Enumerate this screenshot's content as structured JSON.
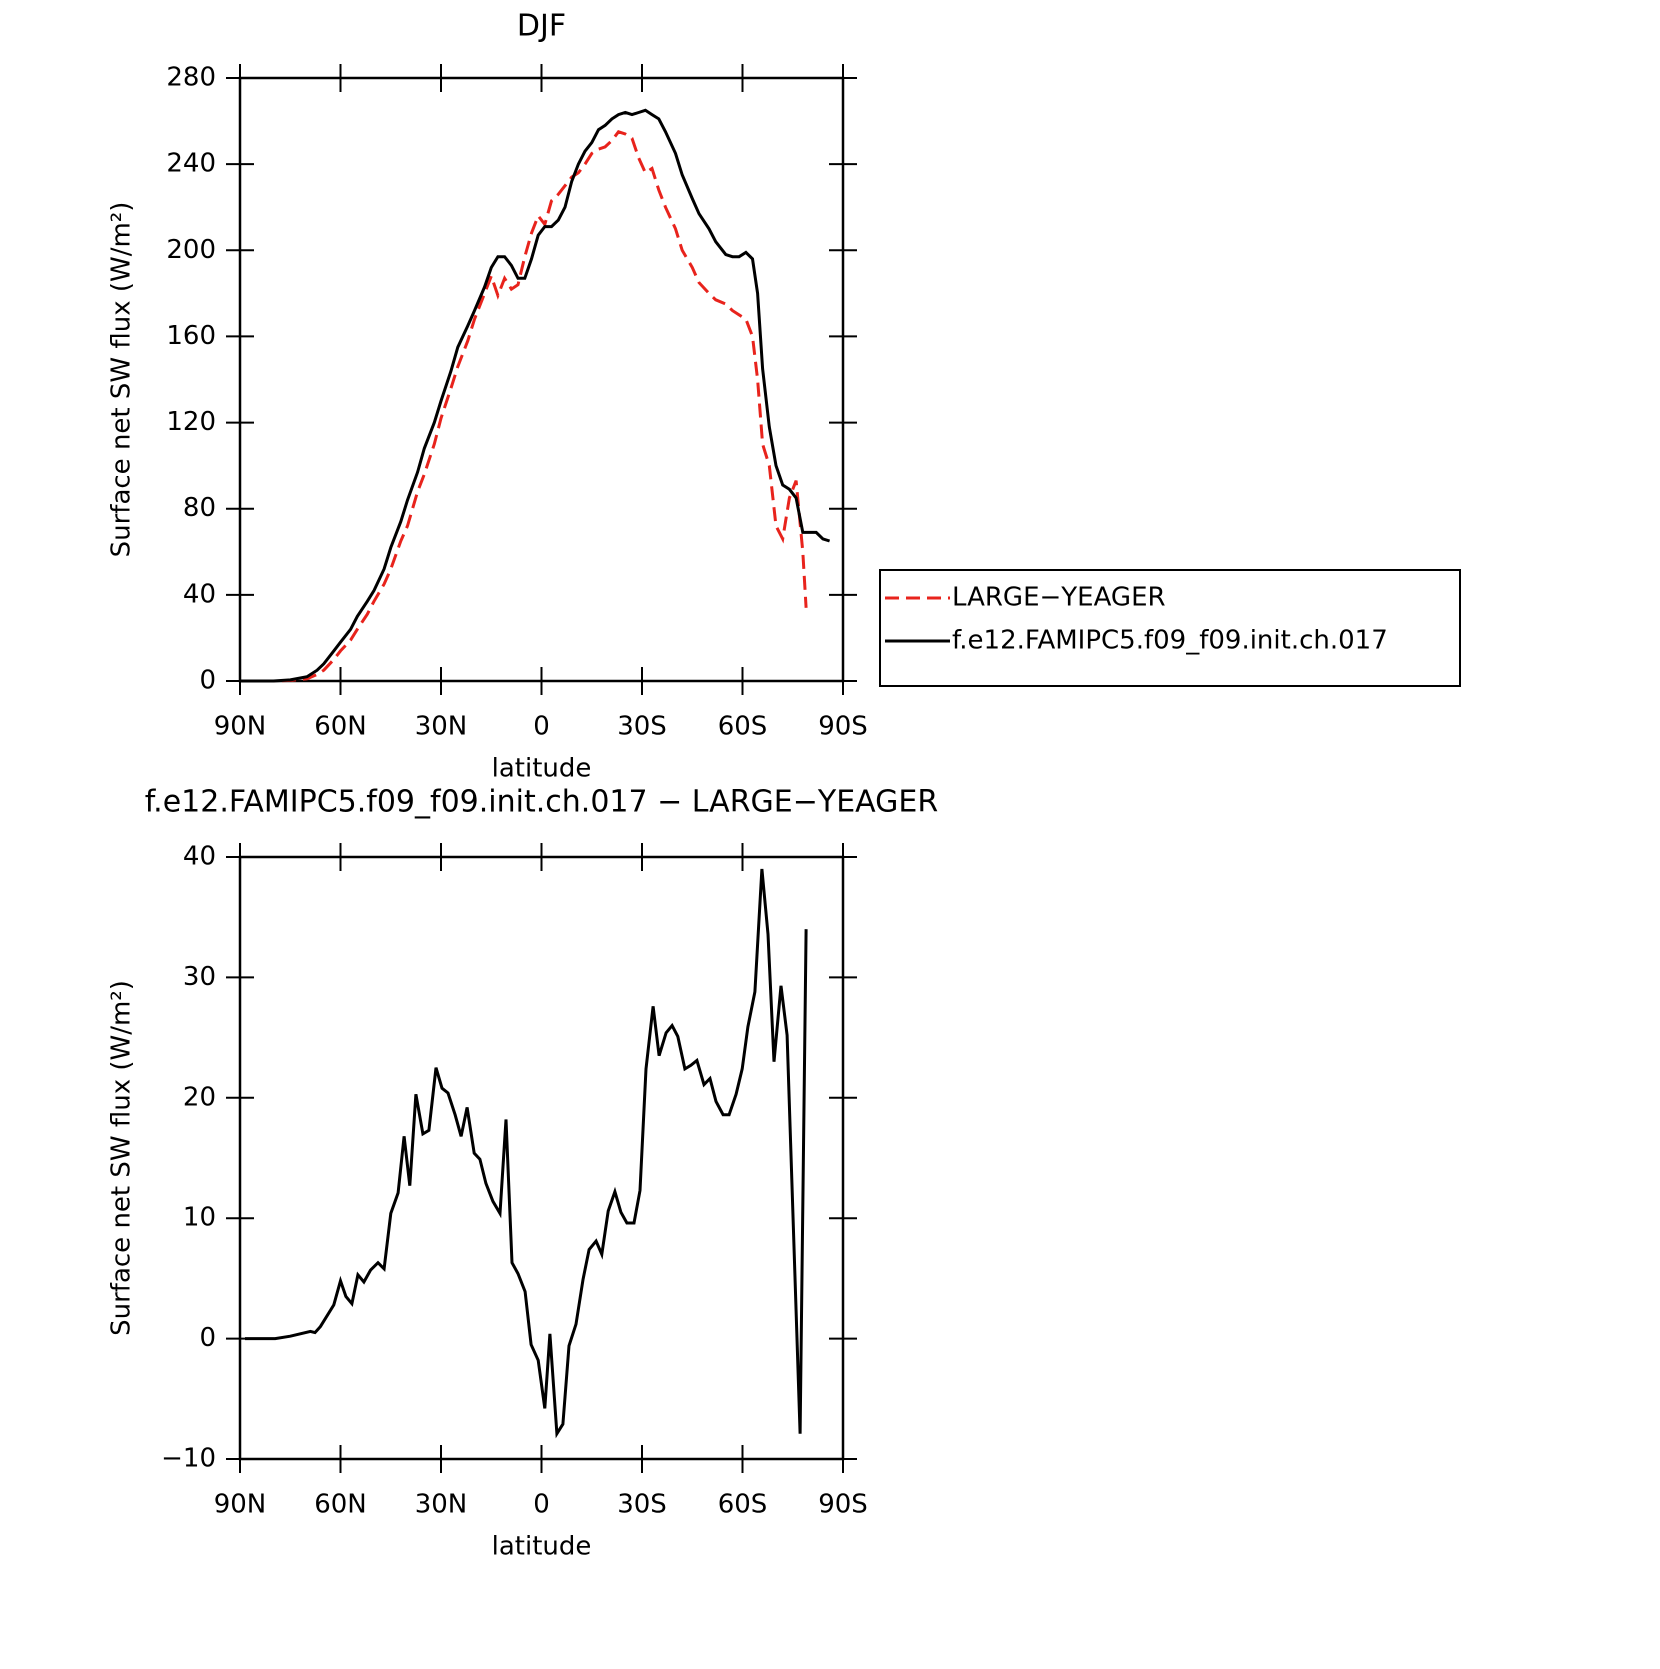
{
  "chart_data": [
    {
      "type": "line",
      "title": "DJF",
      "x_label": "latitude",
      "y_label": "Surface net SW flux (W/m²)",
      "x": [
        90,
        85,
        80,
        75,
        70,
        67,
        65,
        62,
        60,
        57,
        55,
        52,
        50,
        47,
        45,
        42,
        40,
        37,
        35,
        32,
        30,
        27,
        25,
        22,
        20,
        17,
        15,
        13,
        11,
        9,
        7,
        5,
        3,
        1,
        -1,
        -3,
        -5,
        -7,
        -9,
        -11,
        -13,
        -15,
        -17,
        -19,
        -21,
        -23,
        -25,
        -27,
        -29,
        -31,
        -33,
        -35,
        -37,
        -40,
        -42,
        -45,
        -47,
        -50,
        -52,
        -55,
        -57,
        -59,
        -61,
        -63,
        -64.5,
        -66,
        -68,
        -70,
        -72,
        -74,
        -76,
        -78,
        -79,
        -80,
        -82,
        -84,
        -86
      ],
      "series": [
        {
          "name": "LARGE−YEAGER",
          "color": "#e8231c",
          "line_style": "dashed",
          "values": [
            0,
            0,
            0,
            0.3,
            1,
            3,
            5,
            10,
            14,
            19,
            24,
            31,
            37,
            45,
            52,
            65,
            72,
            88,
            96,
            110,
            122,
            136,
            146,
            158,
            168,
            180,
            188,
            179,
            187,
            182,
            184,
            197,
            208,
            216,
            212,
            223,
            226,
            230,
            234,
            236,
            240,
            245,
            247,
            248,
            251,
            255,
            254,
            252,
            243,
            236,
            238,
            228,
            220,
            210,
            200,
            192,
            185,
            180,
            177,
            175,
            172,
            170,
            168,
            160,
            140,
            110,
            100,
            72,
            66,
            85,
            93,
            60,
            34,
            null,
            null,
            null,
            null
          ]
        },
        {
          "name": "f.e12.FAMIPC5.f09_f09.init.ch.017",
          "color": "#000000",
          "line_style": "solid",
          "values": [
            0,
            0,
            0,
            0.5,
            2,
            5,
            8,
            14,
            18,
            24,
            30,
            37,
            42,
            52,
            62,
            74,
            84,
            97,
            108,
            120,
            130,
            144,
            155,
            165,
            172,
            183,
            192,
            197,
            197,
            193,
            187,
            187,
            196,
            207,
            211,
            211,
            214,
            220,
            232,
            240,
            246,
            250,
            256,
            258,
            261,
            263,
            264,
            263,
            264,
            265,
            263,
            261,
            255,
            245,
            235,
            224,
            217,
            210,
            204,
            198,
            197,
            197,
            199,
            196,
            180,
            145,
            118,
            100,
            91,
            89,
            85,
            69,
            69,
            69,
            69,
            66,
            65
          ]
        }
      ],
      "xlim": [
        90,
        -90
      ],
      "xticks": [
        {
          "value": 90,
          "label": "90N"
        },
        {
          "value": 60,
          "label": "60N"
        },
        {
          "value": 30,
          "label": "30N"
        },
        0,
        {
          "value": -30,
          "label": "30S"
        },
        {
          "value": -60,
          "label": "60S"
        },
        {
          "value": -90,
          "label": "90S"
        }
      ],
      "ylim": [
        0,
        280
      ],
      "yticks": [
        0,
        40,
        80,
        120,
        160,
        200,
        240,
        280
      ],
      "legend": "right"
    },
    {
      "type": "line",
      "title": "f.e12.FAMIPC5.f09_f09.init.ch.017 − LARGE−YEAGER",
      "x_label": "latitude",
      "y_label": "Surface net SW flux (W/m²)",
      "x": [
        88.5,
        79.5,
        75,
        69,
        67.6,
        66,
        62,
        60,
        58.4,
        56.6,
        54.8,
        53,
        51,
        48.8,
        47,
        45,
        42.8,
        41,
        39.3,
        37.5,
        35.4,
        33.6,
        31.5,
        29.7,
        27.9,
        25.8,
        24,
        22.2,
        20.1,
        18.4,
        16.6,
        14.5,
        12.4,
        10.6,
        8.8,
        7,
        4.9,
        3.1,
        1,
        -1,
        -2.5,
        -4.6,
        -6.4,
        -8.2,
        -10.3,
        -12.4,
        -14.2,
        -16.3,
        -18,
        -19.9,
        -21.9,
        -23.7,
        -25.5,
        -27.6,
        -29.4,
        -31.2,
        -33.3,
        -35.1,
        -37.2,
        -39,
        -40.7,
        -42.8,
        -44.6,
        -46.4,
        -48.5,
        -50.3,
        -52.1,
        -54.2,
        -56,
        -58.1,
        -59.9,
        -61.6,
        -63.7,
        -65.8,
        -67.6,
        -69.4,
        -71.5,
        -73.3,
        -77.2,
        -79
      ],
      "values": [
        0,
        0,
        0.2,
        0.6,
        0.5,
        1,
        2.8,
        4.8,
        3.5,
        2.9,
        5.3,
        4.7,
        5.7,
        6.3,
        5.8,
        10.4,
        12.1,
        16.8,
        12.7,
        20.3,
        17,
        17.3,
        22.5,
        20.8,
        20.4,
        18.6,
        16.8,
        19.2,
        15.4,
        14.9,
        12.9,
        11.4,
        10.4,
        18.2,
        6.3,
        5.4,
        3.9,
        -0.5,
        -1.8,
        -5.8,
        0.4,
        -7.9,
        -7.1,
        -0.6,
        1.2,
        4.9,
        7.4,
        8.1,
        7,
        10.6,
        12.2,
        10.5,
        9.6,
        9.6,
        12.3,
        22.4,
        27.6,
        23.5,
        25.4,
        26,
        25.1,
        22.4,
        22.7,
        23.1,
        21.1,
        21.6,
        19.7,
        18.6,
        18.6,
        20.3,
        22.4,
        25.9,
        28.8,
        39,
        33.6,
        23,
        29.3,
        25.2,
        -7.9,
        34
      ],
      "color": "#000000",
      "xlim": [
        90,
        -90
      ],
      "xticks": [
        {
          "value": 90,
          "label": "90N"
        },
        {
          "value": 60,
          "label": "60N"
        },
        {
          "value": 30,
          "label": "30N"
        },
        0,
        {
          "value": -30,
          "label": "30S"
        },
        {
          "value": -60,
          "label": "60S"
        },
        {
          "value": -90,
          "label": "90S"
        }
      ],
      "ylim": [
        -10,
        40
      ],
      "yticks": [
        {
          "value": -10,
          "label": "−10"
        },
        0,
        10,
        20,
        30,
        40
      ]
    }
  ]
}
